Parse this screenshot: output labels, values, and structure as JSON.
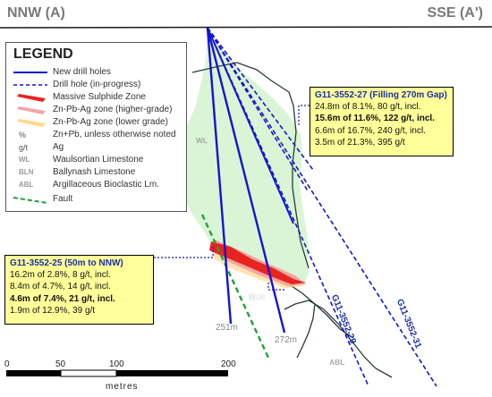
{
  "section": {
    "left_label": "NNW (A)",
    "right_label": "SSE (A')"
  },
  "legend": {
    "title": "LEGEND",
    "items": [
      {
        "symbol": "solid-blue-line",
        "label": "New drill holes"
      },
      {
        "symbol": "dashed-blue-line",
        "label": "Drill hole (in-progress)"
      },
      {
        "symbol": "red-zone",
        "label": "Massive Sulphide Zone"
      },
      {
        "symbol": "pink-zone",
        "label": "Zn-Pb-Ag zone (higher-grade)"
      },
      {
        "symbol": "yellow-zone",
        "label": "Zn-Pb-Ag zone (lower grade)"
      },
      {
        "symbol": "%",
        "label": "Zn+Pb, unless otherwise noted"
      },
      {
        "symbol": "g/t",
        "label": "Ag"
      },
      {
        "symbol": "WL",
        "label": "Waulsortian Limestone"
      },
      {
        "symbol": "BLN",
        "label": "Ballynash Limestone"
      },
      {
        "symbol": "ABL",
        "label": "Argillaceous Bioclastic Lm."
      },
      {
        "symbol": "dashed-green-line",
        "label": "Fault"
      }
    ]
  },
  "callouts": {
    "hole_27": {
      "title": "G11-3552-27 (Filling 270m Gap)",
      "lines": [
        "24.8m of 8.1%, 80 g/t, incl.",
        "15.6m of 11.6%, 122 g/t, incl.",
        "6.6m of 16.7%, 240 g/t, incl.",
        "3.5m of 21.3%, 395 g/t"
      ],
      "bold_line": 1
    },
    "hole_25": {
      "title": "G11-3552-25 (50m to NNW)",
      "lines": [
        "16.2m of 2.8%, 8 g/t, incl.",
        "8.4m of 4.7%, 14 g/t, incl.",
        "4.6m of 7.4%, 21 g/t, incl.",
        "1.9m of 12.9%, 39 g/t"
      ],
      "bold_line": 2
    }
  },
  "units": {
    "wl": "WL",
    "bln": "BLN",
    "abl": "ABL"
  },
  "depths": {
    "d251": "251m",
    "d272": "272m"
  },
  "holes": {
    "h29": "G11-3552-29",
    "h31": "G11-3552-31"
  },
  "scale_bar": {
    "ticks": [
      "0",
      "50",
      "100",
      "200"
    ],
    "unit": "metres"
  },
  "colors": {
    "drill_hole": "#1414d2",
    "massive_sulphide": "#e8241e",
    "higher_grade": "#f2a6a6",
    "lower_grade": "#ffd98a",
    "fault": "#1fa23a",
    "wl_zone": "#d9f5d5",
    "callout_bg": "#ffff99"
  }
}
